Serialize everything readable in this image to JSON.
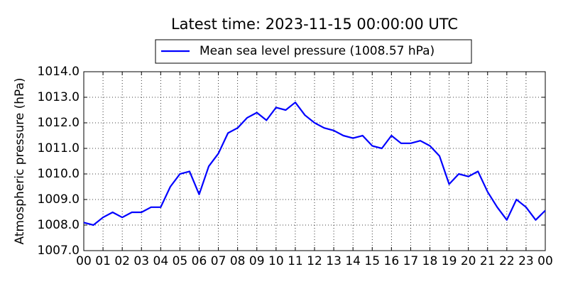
{
  "chart_data": {
    "type": "line",
    "title": "Latest time: 2023-11-15 00:00:00 UTC",
    "y_label": "Atmospheric pressure (hPa)",
    "x": [
      0,
      0.5,
      1,
      1.5,
      2,
      2.5,
      3,
      3.5,
      4,
      4.5,
      5,
      5.5,
      6,
      6.5,
      7,
      7.5,
      8,
      8.5,
      9,
      9.5,
      10,
      10.5,
      11,
      11.5,
      12,
      12.5,
      13,
      13.5,
      14,
      14.5,
      15,
      15.5,
      16,
      16.5,
      17,
      17.5,
      18,
      18.5,
      19,
      19.5,
      20,
      20.5,
      21,
      21.5,
      22,
      22.5,
      23,
      23.5,
      24
    ],
    "series": [
      {
        "name": "Mean sea level pressure (1008.57 hPa)",
        "color": "#0000ff",
        "values": [
          1008.1,
          1008.0,
          1008.3,
          1008.5,
          1008.3,
          1008.5,
          1008.5,
          1008.7,
          1008.7,
          1009.5,
          1010.0,
          1010.1,
          1009.2,
          1010.3,
          1010.8,
          1011.6,
          1011.8,
          1012.2,
          1012.4,
          1012.1,
          1012.6,
          1012.5,
          1012.8,
          1012.3,
          1012.0,
          1011.8,
          1011.7,
          1011.5,
          1011.4,
          1011.5,
          1011.1,
          1011.0,
          1011.5,
          1011.2,
          1011.2,
          1011.3,
          1011.1,
          1010.7,
          1009.6,
          1010.0,
          1009.9,
          1010.1,
          1009.3,
          1008.7,
          1008.2,
          1009.0,
          1008.7,
          1008.2,
          1008.57
        ]
      }
    ],
    "xlim": [
      0,
      24
    ],
    "xticks": [
      {
        "value": 0,
        "label": "00"
      },
      {
        "value": 1,
        "label": "01"
      },
      {
        "value": 2,
        "label": "02"
      },
      {
        "value": 3,
        "label": "03"
      },
      {
        "value": 4,
        "label": "04"
      },
      {
        "value": 5,
        "label": "05"
      },
      {
        "value": 6,
        "label": "06"
      },
      {
        "value": 7,
        "label": "07"
      },
      {
        "value": 8,
        "label": "08"
      },
      {
        "value": 9,
        "label": "09"
      },
      {
        "value": 10,
        "label": "10"
      },
      {
        "value": 11,
        "label": "11"
      },
      {
        "value": 12,
        "label": "12"
      },
      {
        "value": 13,
        "label": "13"
      },
      {
        "value": 14,
        "label": "14"
      },
      {
        "value": 15,
        "label": "15"
      },
      {
        "value": 16,
        "label": "16"
      },
      {
        "value": 17,
        "label": "17"
      },
      {
        "value": 18,
        "label": "18"
      },
      {
        "value": 19,
        "label": "19"
      },
      {
        "value": 20,
        "label": "20"
      },
      {
        "value": 21,
        "label": "21"
      },
      {
        "value": 22,
        "label": "22"
      },
      {
        "value": 23,
        "label": "23"
      },
      {
        "value": 24,
        "label": "00"
      }
    ],
    "ylim": [
      1007,
      1014
    ],
    "yticks": [
      {
        "value": 1007,
        "label": "1007.0"
      },
      {
        "value": 1008,
        "label": "1008.0"
      },
      {
        "value": 1009,
        "label": "1009.0"
      },
      {
        "value": 1010,
        "label": "1010.0"
      },
      {
        "value": 1011,
        "label": "1011.0"
      },
      {
        "value": 1012,
        "label": "1012.0"
      },
      {
        "value": 1013,
        "label": "1013.0"
      },
      {
        "value": 1014,
        "label": "1014.0"
      }
    ],
    "grid": true,
    "legend": "top"
  }
}
